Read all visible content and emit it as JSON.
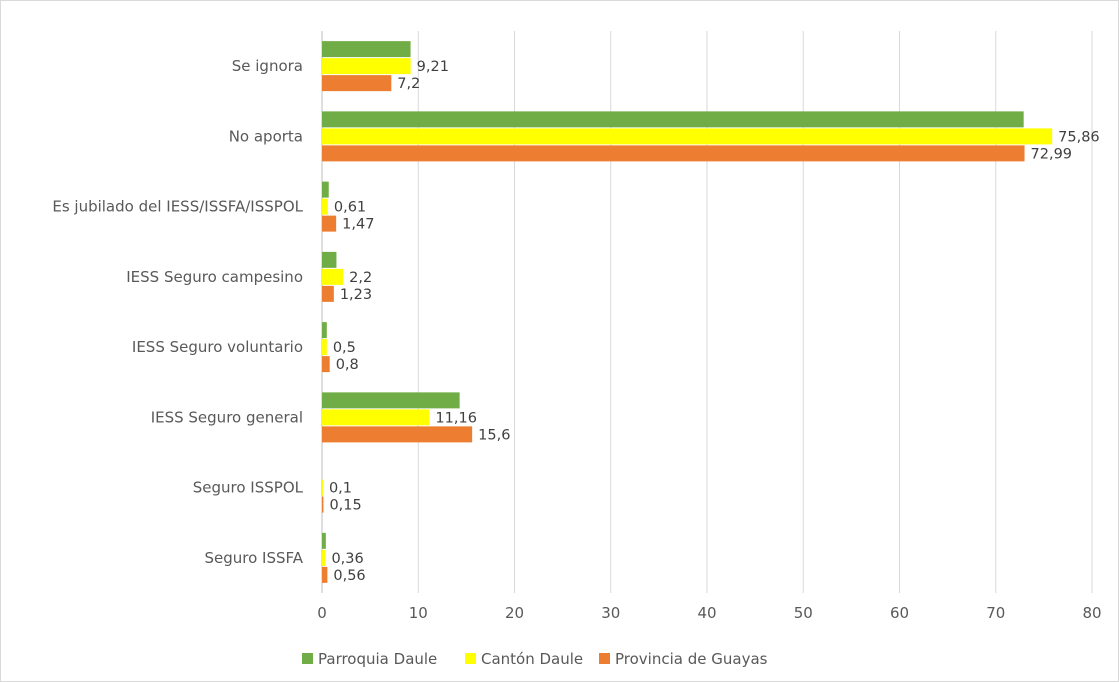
{
  "chart_data": {
    "type": "bar",
    "orientation": "horizontal",
    "title": "",
    "xlabel": "",
    "ylabel": "",
    "xlim": [
      0,
      80
    ],
    "ticks": [
      0,
      10,
      20,
      30,
      40,
      50,
      60,
      70,
      80
    ],
    "grid": "vertical",
    "legend_position": "bottom",
    "categories": [
      "Se ignora",
      "No aporta",
      "Es jubilado del IESS/ISSFA/ISSPOL",
      "IESS Seguro campesino",
      "IESS Seguro voluntario",
      "IESS Seguro general",
      "Seguro ISSPOL",
      "Seguro ISSFA"
    ],
    "series": [
      {
        "name": "Parroquia Daule",
        "color": "#70ad47",
        "values": [
          9.2,
          72.9,
          0.7,
          1.5,
          0.5,
          14.3,
          0.0,
          0.4
        ],
        "labels": [
          "",
          "",
          "",
          "",
          "",
          "",
          "",
          ""
        ]
      },
      {
        "name": "Cantón Daule",
        "color": "#ffff00",
        "values": [
          9.21,
          75.86,
          0.61,
          2.2,
          0.5,
          11.16,
          0.1,
          0.36
        ],
        "labels": [
          "9,21",
          "75,86",
          "0,61",
          "2,2",
          "0,5",
          "11,16",
          "0,1",
          "0,36"
        ]
      },
      {
        "name": "Provincia de Guayas",
        "color": "#ed7d31",
        "values": [
          7.2,
          72.99,
          1.47,
          1.23,
          0.8,
          15.6,
          0.15,
          0.56
        ],
        "labels": [
          "7,2",
          "72,99",
          "1,47",
          "1,23",
          "0,8",
          "15,6",
          "0,15",
          "0,56"
        ]
      }
    ]
  }
}
